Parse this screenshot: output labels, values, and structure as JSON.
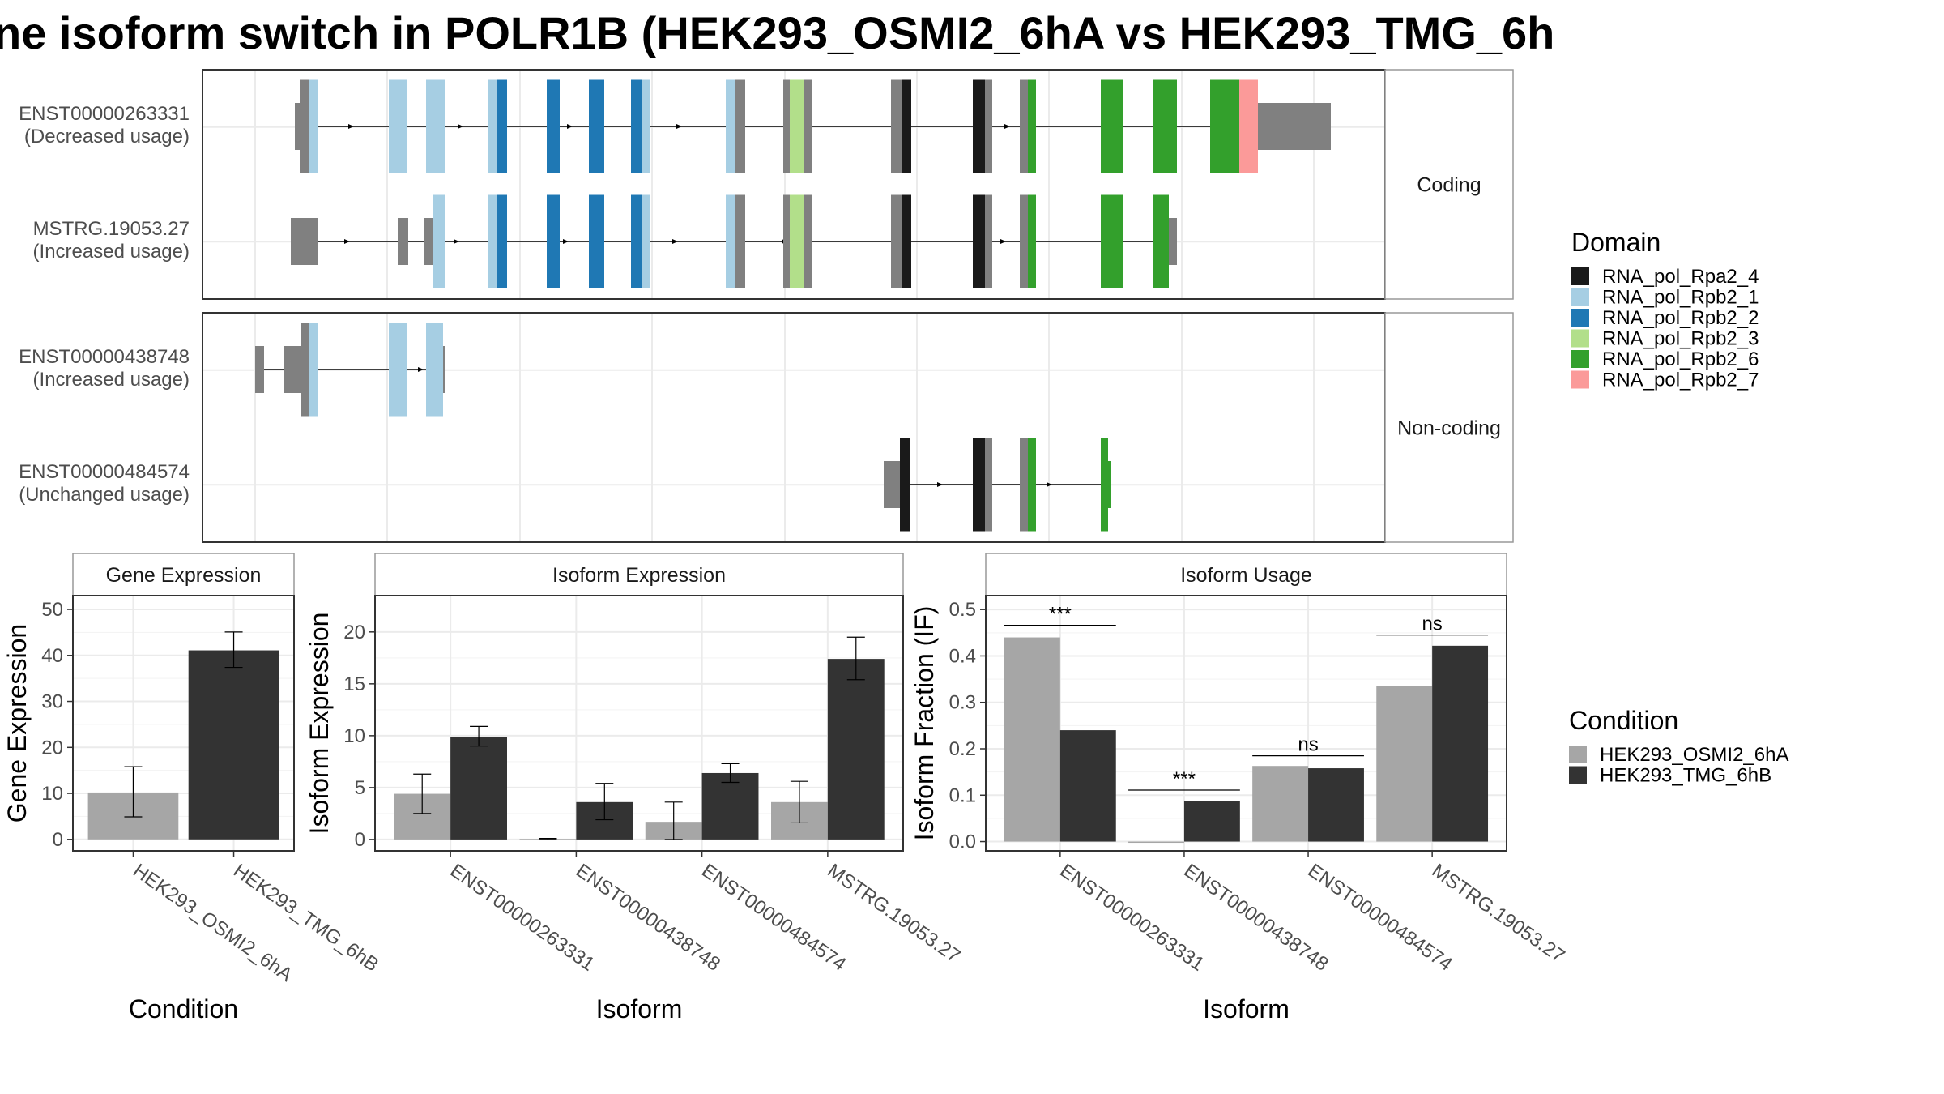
{
  "title": "ne isoform switch in POLR1B (HEK293_OSMI2_6hA vs HEK293_TMG_6h",
  "colors": {
    "HEK293_OSMI2_6hA": "#a6a6a6",
    "HEK293_TMG_6hB": "#333333",
    "noncoding_exon": "#808080",
    "RNA_pol_Rpa2_4": "#1a1a1a",
    "RNA_pol_Rpb2_1": "#a6cee3",
    "RNA_pol_Rpb2_2": "#1f78b4",
    "RNA_pol_Rpb2_3": "#b2df8a",
    "RNA_pol_Rpb2_6": "#33a02c",
    "RNA_pol_Rpb2_7": "#fb9a99"
  },
  "structure": {
    "facets": [
      "Coding",
      "Non-coding"
    ],
    "transcripts": [
      {
        "id": "ENST00000263331",
        "label": "(Decreased usage)",
        "facet": "Coding"
      },
      {
        "id": "MSTRG.19053.27",
        "label": "(Increased usage)",
        "facet": "Coding"
      },
      {
        "id": "ENST00000438748",
        "label": "(Increased usage)",
        "facet": "Non-coding"
      },
      {
        "id": "ENST00000484574",
        "label": "(Unchanged usage)",
        "facet": "Non-coding"
      }
    ]
  },
  "legend_domain": {
    "title": "Domain",
    "items": [
      "RNA_pol_Rpa2_4",
      "RNA_pol_Rpb2_1",
      "RNA_pol_Rpb2_2",
      "RNA_pol_Rpb2_3",
      "RNA_pol_Rpb2_6",
      "RNA_pol_Rpb2_7"
    ]
  },
  "legend_condition": {
    "title": "Condition",
    "items": [
      "HEK293_OSMI2_6hA",
      "HEK293_TMG_6hB"
    ]
  },
  "chart_data": [
    {
      "type": "bar",
      "title": "Gene Expression",
      "xlabel": "Condition",
      "ylabel": "Gene Expression",
      "categories": [
        "HEK293_OSMI2_6hA",
        "HEK293_TMG_6hB"
      ],
      "values": [
        10.2,
        41.1
      ],
      "error": [
        [
          4.9,
          15.8
        ],
        [
          37.4,
          45.1
        ]
      ],
      "ylim": [
        -2.5,
        53
      ],
      "yticks": [
        0,
        10,
        20,
        30,
        40,
        50
      ],
      "grid": true
    },
    {
      "type": "bar",
      "title": "Isoform Expression",
      "xlabel": "Isoform",
      "ylabel": "Isoform Expression",
      "categories": [
        "ENST00000263331",
        "ENST00000438748",
        "ENST00000484574",
        "MSTRG.19053.27"
      ],
      "series": [
        {
          "name": "HEK293_OSMI2_6hA",
          "values": [
            4.4,
            0.05,
            1.7,
            3.6
          ],
          "error": [
            [
              2.5,
              6.3
            ],
            [
              0.0,
              0.1
            ],
            [
              0.0,
              3.6
            ],
            [
              1.6,
              5.6
            ]
          ]
        },
        {
          "name": "HEK293_TMG_6hB",
          "values": [
            9.9,
            3.6,
            6.4,
            17.4
          ],
          "error": [
            [
              9.0,
              10.9
            ],
            [
              1.9,
              5.4
            ],
            [
              5.5,
              7.3
            ],
            [
              15.4,
              19.5
            ]
          ]
        }
      ],
      "ylim": [
        -1.1,
        23.5
      ],
      "yticks": [
        0,
        5,
        10,
        15,
        20
      ],
      "grid": true
    },
    {
      "type": "bar",
      "title": "Isoform Usage",
      "xlabel": "Isoform",
      "ylabel": "Isoform Fraction (IF)",
      "categories": [
        "ENST00000263331",
        "ENST00000438748",
        "ENST00000484574",
        "MSTRG.19053.27"
      ],
      "series": [
        {
          "name": "HEK293_OSMI2_6hA",
          "values": [
            0.44,
            0.0,
            0.163,
            0.336
          ]
        },
        {
          "name": "HEK293_TMG_6hB",
          "values": [
            0.24,
            0.087,
            0.158,
            0.422
          ]
        }
      ],
      "significance": [
        {
          "label": "***",
          "y": 0.466
        },
        {
          "label": "***",
          "y": 0.111
        },
        {
          "label": "ns",
          "y": 0.185
        },
        {
          "label": "ns",
          "y": 0.445
        }
      ],
      "ylim": [
        -0.02,
        0.53
      ],
      "yticks": [
        0.0,
        0.1,
        0.2,
        0.3,
        0.4,
        0.5
      ],
      "ytick_labels": [
        "0.0",
        "0.1",
        "0.2",
        "0.3",
        "0.4",
        "0.5"
      ],
      "grid": true
    }
  ]
}
